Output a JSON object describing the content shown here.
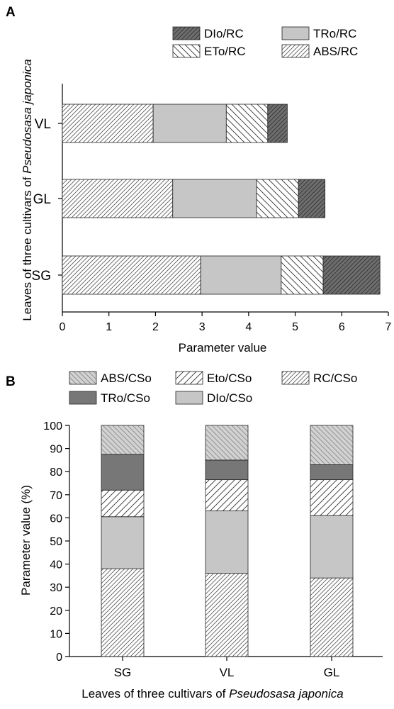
{
  "chart_data": [
    {
      "panel_label": "A",
      "type": "bar",
      "orientation": "horizontal",
      "stacked": true,
      "categories": [
        "VL",
        "GL",
        "SG"
      ],
      "series": [
        {
          "name": "ABS/RC",
          "values": [
            1.95,
            2.37,
            2.97
          ],
          "pattern": "hatch-dense-diagonal",
          "color": "#ffffff"
        },
        {
          "name": "TRo/RC",
          "values": [
            1.57,
            1.8,
            1.73
          ],
          "pattern": "solid",
          "color": "#c6c6c6"
        },
        {
          "name": "ETo/RC",
          "values": [
            0.89,
            0.9,
            0.9
          ],
          "pattern": "hatch-sparse-diagonal",
          "color": "#ffffff"
        },
        {
          "name": "DIo/RC",
          "values": [
            0.42,
            0.57,
            1.22
          ],
          "pattern": "hatch-dark",
          "color": "#6e6e6e"
        }
      ],
      "legend_order": [
        "DIo/RC",
        "TRo/RC",
        "ETo/RC",
        "ABS/RC"
      ],
      "legend_position": "top-right",
      "xlabel": "Parameter value",
      "ylabel_prefix": "Leaves of three cultivars of ",
      "ylabel_italic": "Pseudosasa japonica",
      "xlim": [
        0,
        7
      ],
      "xticks": [
        "0",
        "1",
        "2",
        "3",
        "4",
        "5",
        "6",
        "7"
      ],
      "grid": false
    },
    {
      "panel_label": "B",
      "type": "bar",
      "orientation": "vertical",
      "stacked": true,
      "categories": [
        "SG",
        "VL",
        "GL"
      ],
      "series": [
        {
          "name": "RC/CSo",
          "values": [
            38,
            36,
            34
          ],
          "pattern": "hatch-dense-diagonal",
          "color": "#ffffff"
        },
        {
          "name": "DIo/CSo",
          "values": [
            22.5,
            27,
            27
          ],
          "pattern": "solid",
          "color": "#c6c6c6"
        },
        {
          "name": "Eto/CSo",
          "values": [
            11.5,
            13.5,
            15.5
          ],
          "pattern": "hatch-sparse-diagonal",
          "color": "#ffffff"
        },
        {
          "name": "TRo/CSo",
          "values": [
            15.5,
            8.5,
            6.5
          ],
          "pattern": "solid-dark",
          "color": "#777777"
        },
        {
          "name": "ABS/CSo",
          "values": [
            12.5,
            15,
            17
          ],
          "pattern": "hatch-gray",
          "color": "#d2d2d2"
        }
      ],
      "legend_order": [
        "ABS/CSo",
        "Eto/CSo",
        "RC/CSo",
        "TRo/CSo",
        "DIo/CSo"
      ],
      "legend_position": "top",
      "xlabel_prefix": "Leaves of three cultivars of ",
      "xlabel_italic": "Pseudosasa japonica",
      "ylabel": "Parameter value (%)",
      "ylim": [
        0,
        100
      ],
      "yticks": [
        "0",
        "10",
        "20",
        "30",
        "40",
        "50",
        "60",
        "70",
        "80",
        "90",
        "100"
      ],
      "grid": false
    }
  ]
}
